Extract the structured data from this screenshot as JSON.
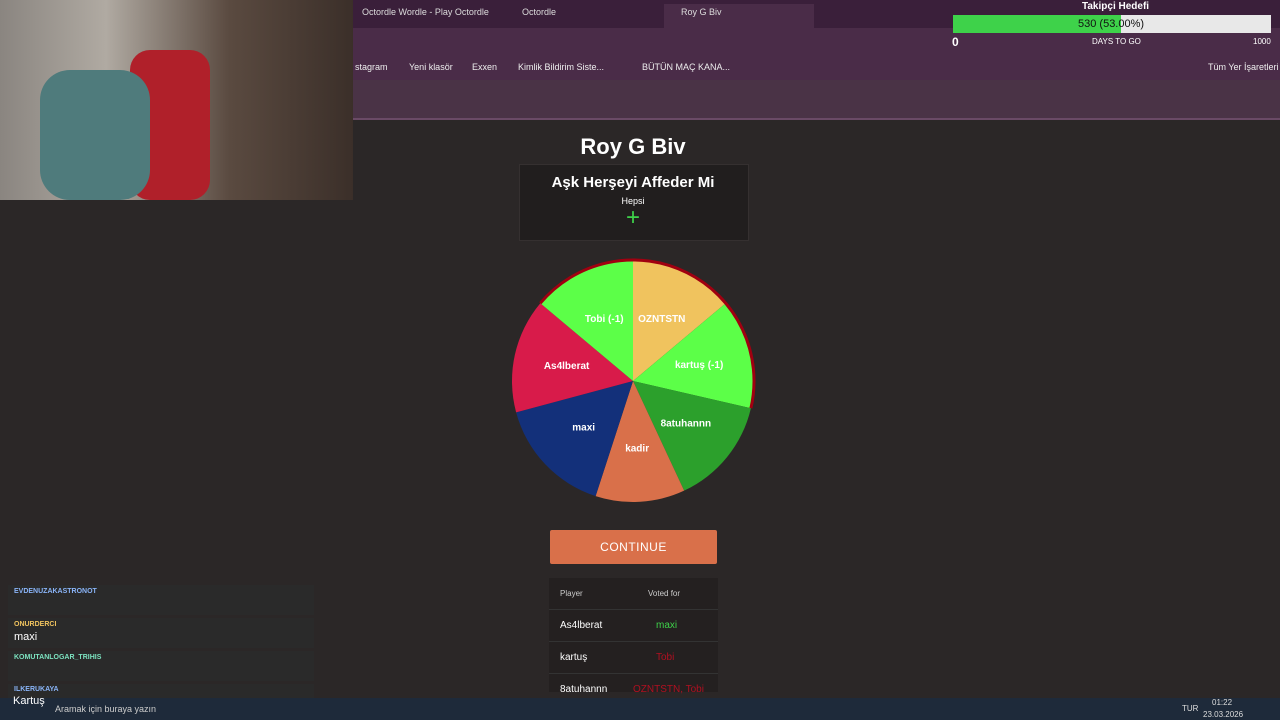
{
  "browser": {
    "tabs": [
      "Octordle Wordle - Play Octordle",
      "Octordle",
      "Roy G Biv"
    ],
    "bookmarks": [
      "stagram",
      "Yeni klasör",
      "Exxen",
      "Kimlik Bildirim Siste...",
      "BÜTÜN MAÇ KANA..."
    ],
    "bookmarks_all": "Tüm Yer İşaretleri"
  },
  "overlay": {
    "goal_title": "Takipçi Hedefi",
    "goal_progress": "530 (53.00%)",
    "count": "0",
    "days": "DAYS TO GO",
    "max": "1000"
  },
  "page": {
    "title": "Roy G Biv",
    "song": "Aşk Herşeyi Affeder Mi",
    "scope": "Hepsi",
    "add": "+",
    "wheel": [
      {
        "label": "OZNTSTN",
        "color": "#f0c35e"
      },
      {
        "label": "kartuş (-1)",
        "color": "#5cff48"
      },
      {
        "label": "8atuhannn",
        "color": "#2ca02c"
      },
      {
        "label": "kadir",
        "color": "#d9704a"
      },
      {
        "label": "maxi",
        "color": "#13307a"
      },
      {
        "label": "As4lberat",
        "color": "#d81b4a"
      },
      {
        "label": "Tobi (-1)",
        "color": "#5cff48"
      }
    ],
    "button": "CONTINUE",
    "table": {
      "header": [
        "Player",
        "Voted for"
      ],
      "rows": [
        [
          "As4lberat",
          "maxi"
        ],
        [
          "kartuş",
          "Tobi"
        ],
        [
          "8atuhannn",
          "OZNTSTN, Tobi"
        ]
      ]
    }
  },
  "chat": [
    {
      "user": "EVDENUZAKASTRONOT"
    },
    {
      "user": "ONURDERCI",
      "message": "maxi"
    },
    {
      "user": "KOMUTANLOGAR_TRIHIS"
    },
    {
      "user": "ILKERUKAYA",
      "message": "Kartuş"
    }
  ],
  "taskbar": {
    "search": "Aramak için buraya yazın",
    "lang": "TUR",
    "time": "01:22",
    "date": "23.03.2026"
  }
}
